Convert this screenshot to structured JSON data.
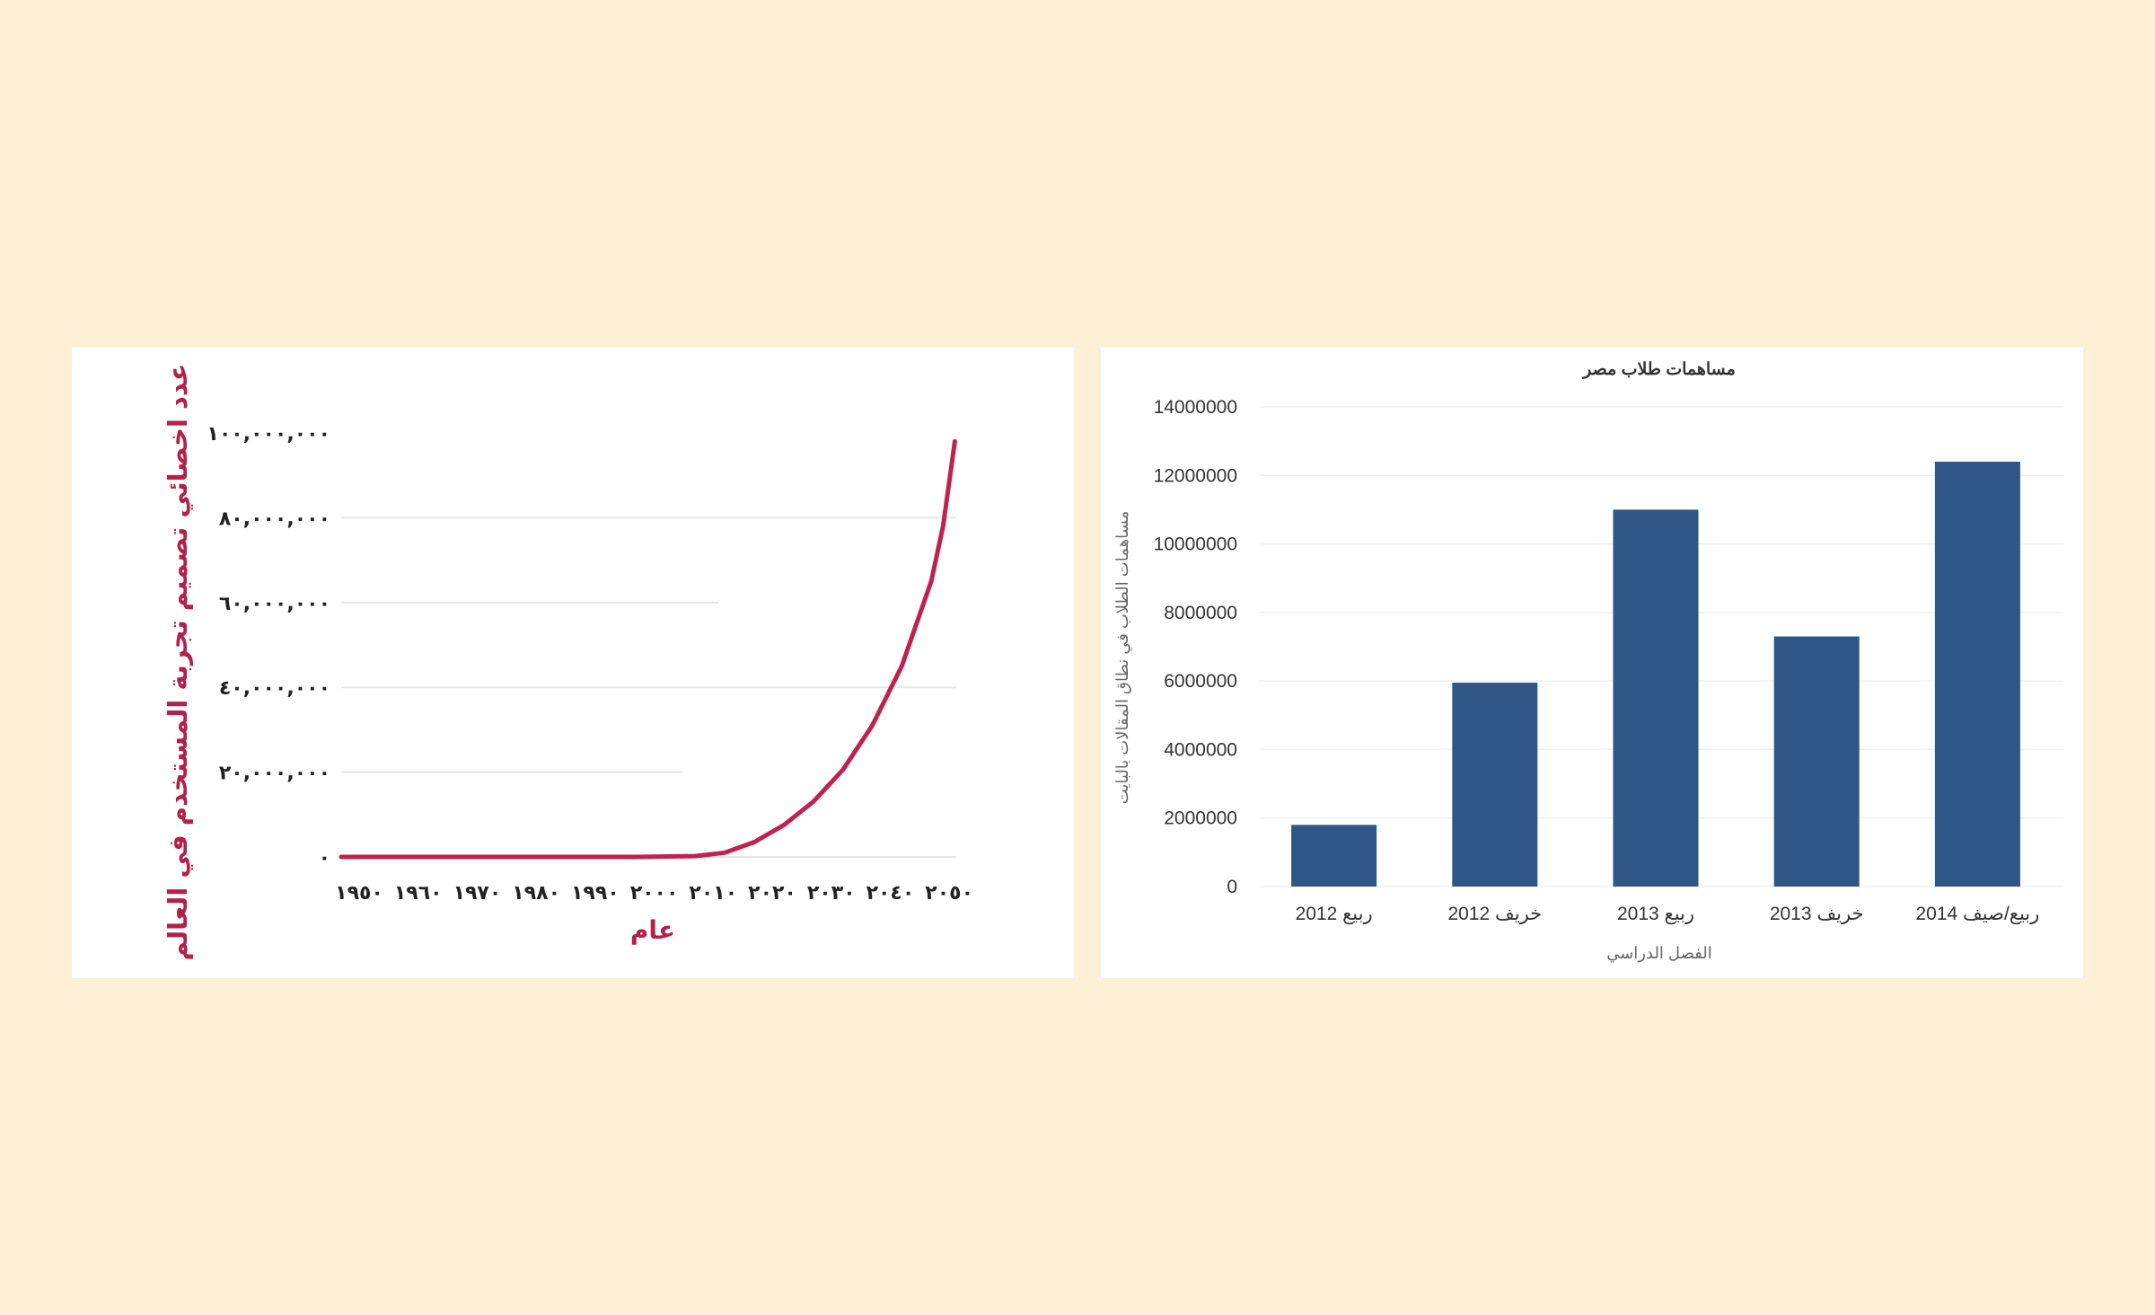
{
  "colors": {
    "page_background": "#fdf0d6",
    "panel_background": "#ffffff",
    "line": "#c0224f",
    "bar": "#2e5687",
    "grid": "#e6e6e6"
  },
  "chart_data": [
    {
      "type": "line",
      "title": "",
      "xlabel": "عام",
      "ylabel": "عدد اخصائي تصميم تجربة المستخدم في العالم",
      "x_ticks": [
        "١٩٥٠",
        "١٩٦٠",
        "١٩٧٠",
        "١٩٨٠",
        "١٩٩٠",
        "٢٠٠٠",
        "٢٠١٠",
        "٢٠٢٠",
        "٢٠٣٠",
        "٢٠٤٠",
        "٢٠٥٠"
      ],
      "y_ticks": [
        "٠",
        "٢٠,٠٠٠,٠٠٠",
        "٤٠,٠٠٠,٠٠٠",
        "٦٠,٠٠٠,٠٠٠",
        "٨٠,٠٠٠,٠٠٠",
        "١٠٠,٠٠٠,٠٠٠"
      ],
      "xlim": [
        1950,
        2055
      ],
      "ylim": [
        0,
        100000000
      ],
      "grid": true,
      "legend": "none",
      "series": [
        {
          "x": [
            1950,
            1960,
            1970,
            1980,
            1990,
            2000,
            2010,
            2015,
            2020,
            2025,
            2030,
            2035,
            2040,
            2045,
            2050,
            2052,
            2054
          ],
          "y": [
            0,
            0,
            0,
            0,
            0,
            0,
            200000,
            1000000,
            3500000,
            7500000,
            13000000,
            20500000,
            31000000,
            45000000,
            65000000,
            78000000,
            98000000
          ]
        }
      ]
    },
    {
      "type": "bar",
      "title": "مساهمات طلاب مصر",
      "xlabel": "الفصل الدراسي",
      "ylabel": "مساهمات الطلاب في نطاق المقالات بالبايت",
      "categories": [
        "ربيع 2012",
        "خريف 2012",
        "ربيع 2013",
        "خريف 2013",
        "ربيع/صيف 2014"
      ],
      "values": [
        1800000,
        5950000,
        11000000,
        7300000,
        12400000
      ],
      "y_ticks": [
        "0",
        "2000000",
        "4000000",
        "6000000",
        "8000000",
        "10000000",
        "12000000",
        "14000000"
      ],
      "ylim": [
        0,
        14000000
      ],
      "grid": true,
      "legend": "none"
    }
  ]
}
